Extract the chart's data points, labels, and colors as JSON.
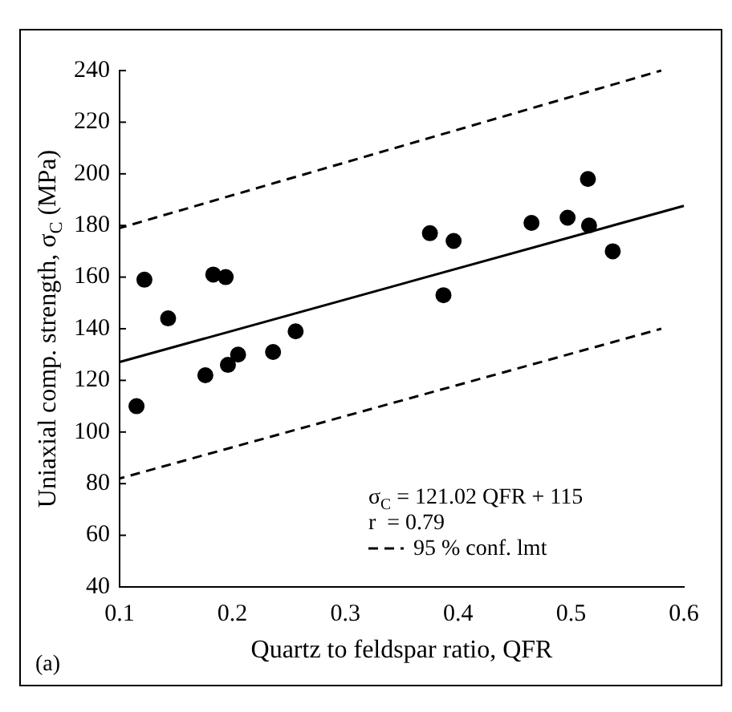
{
  "chart_data": {
    "type": "scatter",
    "xlabel": "Quartz to feldspar ratio, QFR",
    "ylabel": "Uniaxial comp. strength, σ$_{C}$ (MPa)",
    "xlim": [
      0.1,
      0.6
    ],
    "xticks": [
      0.1,
      0.2,
      0.3,
      0.4,
      0.5,
      0.6
    ],
    "ylim": [
      40,
      240
    ],
    "yticks": [
      40,
      60,
      80,
      100,
      120,
      140,
      160,
      180,
      200,
      220,
      240
    ],
    "grid": false,
    "legend": "bottom right",
    "series": [
      {
        "marker": "circle",
        "color": "#000000",
        "x": [
          0.115,
          0.122,
          0.143,
          0.176,
          0.183,
          0.194,
          0.196,
          0.205,
          0.236,
          0.256,
          0.375,
          0.387,
          0.396,
          0.465,
          0.497,
          0.515,
          0.516,
          0.537
        ],
        "values": [
          110,
          159,
          144,
          122,
          161,
          160,
          126,
          130,
          131,
          139,
          177,
          153,
          174,
          181,
          183,
          198,
          180,
          170
        ]
      },
      {
        "type": "line",
        "color": "#000000",
        "line_style": "solid",
        "x": [
          0.1,
          0.6
        ],
        "values": [
          127.1,
          187.6
        ]
      },
      {
        "type": "line",
        "color": "#000000",
        "line_style": "dashed",
        "name": "95 % conf. lmt",
        "x": [
          0.1,
          0.58
        ],
        "values": [
          179,
          240
        ]
      },
      {
        "type": "line",
        "color": "#000000",
        "line_style": "dashed",
        "x": [
          0.1,
          0.58
        ],
        "values": [
          82,
          140
        ]
      }
    ],
    "annotations": [
      "σ$_{C}$ = 121.02 QFR + 115",
      "r  = 0.79",
      "(a)"
    ]
  }
}
